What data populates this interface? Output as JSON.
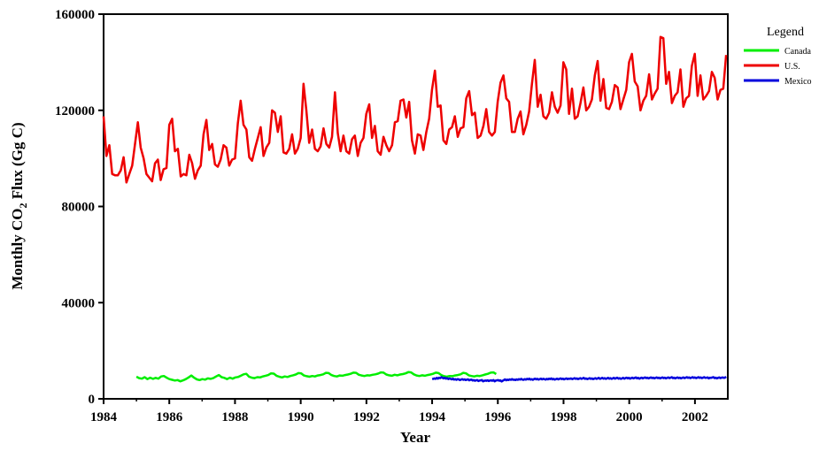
{
  "chart_data": {
    "type": "line",
    "xlabel": "Year",
    "ylabel": {
      "prefix": "Monthly CO",
      "subscript": "2",
      "suffix": " Flux (Gg C)"
    },
    "xlim": [
      1984,
      2003
    ],
    "ylim": [
      0,
      160000
    ],
    "x_ticks": [
      "1984",
      "1986",
      "1988",
      "1990",
      "1992",
      "1994",
      "1996",
      "1998",
      "2000",
      "2002"
    ],
    "y_ticks": [
      "0",
      "40000",
      "80000",
      "120000",
      "160000"
    ],
    "legend": {
      "title": "Legend",
      "position": "top-right"
    },
    "series": [
      {
        "name": "Canada",
        "color": "#00ee00",
        "x_start": 1985.0,
        "x_end": 1995.95,
        "values": [
          9200,
          8600,
          8400,
          9000,
          8200,
          8800,
          8300,
          8700,
          8400,
          9300,
          9500,
          8800,
          8200,
          7900,
          7600,
          7800,
          7300,
          7700,
          8200,
          8900,
          9700,
          8800,
          8100,
          7800,
          8200,
          8000,
          8500,
          8300,
          8600,
          9300,
          9900,
          9000,
          8700,
          8200,
          8800,
          8400,
          8900,
          9100,
          9600,
          10200,
          10400,
          9200,
          8800,
          8600,
          9000,
          8900,
          9300,
          9600,
          9900,
          10600,
          10500,
          9600,
          9200,
          8900,
          9300,
          9100,
          9500,
          9800,
          10100,
          10700,
          10600,
          9700,
          9400,
          9200,
          9500,
          9300,
          9700,
          9900,
          10200,
          10800,
          10700,
          9900,
          9500,
          9300,
          9700,
          9600,
          9900,
          10100,
          10400,
          10900,
          10800,
          10000,
          9700,
          9500,
          9800,
          9700,
          10000,
          10200,
          10500,
          11000,
          10900,
          10100,
          9800,
          9600,
          10000,
          9800,
          10100,
          10300,
          10600,
          11100,
          11000,
          10200,
          9700,
          9500,
          9800,
          9600,
          9900,
          10100,
          10400,
          10900,
          10700,
          9900,
          9400,
          9200,
          9500,
          9400,
          9700,
          9900,
          10200,
          10800,
          10600,
          9800,
          9500,
          9300,
          9600,
          9500,
          9800,
          10100,
          10400,
          10900,
          11000,
          10300
        ]
      },
      {
        "name": "U.S.",
        "color": "#ee0000",
        "x_start": 1984.0,
        "x_end": 2002.95,
        "values": [
          117500,
          101000,
          105500,
          93500,
          93000,
          93000,
          95000,
          100500,
          90000,
          93500,
          97000,
          106000,
          115000,
          104500,
          100000,
          93500,
          92000,
          90500,
          98000,
          99500,
          91000,
          95500,
          96000,
          114000,
          116500,
          103000,
          104000,
          92500,
          93500,
          93000,
          101500,
          98000,
          91500,
          95000,
          97000,
          110000,
          116000,
          103500,
          106000,
          97500,
          96500,
          99500,
          105500,
          104500,
          97000,
          99500,
          100000,
          114500,
          124000,
          114000,
          112000,
          100500,
          99000,
          104000,
          108500,
          113000,
          101000,
          104500,
          106500,
          120000,
          119000,
          111000,
          117500,
          102500,
          102000,
          104000,
          110000,
          102000,
          104000,
          108500,
          131000,
          120000,
          106500,
          112000,
          104000,
          103000,
          105000,
          112500,
          106000,
          104500,
          109000,
          127500,
          110500,
          103000,
          109500,
          103000,
          102000,
          108000,
          109500,
          101000,
          106500,
          108500,
          118500,
          122500,
          108500,
          113500,
          103000,
          101500,
          109000,
          105500,
          103000,
          105500,
          115000,
          115500,
          124000,
          124500,
          117000,
          123500,
          107500,
          102000,
          110000,
          109500,
          103500,
          111000,
          116500,
          128500,
          136500,
          121500,
          122000,
          107500,
          106000,
          112000,
          113000,
          117500,
          109000,
          112500,
          113000,
          125000,
          128000,
          118000,
          119000,
          108500,
          109500,
          113500,
          120500,
          111000,
          109500,
          111000,
          123500,
          131500,
          134500,
          125000,
          123500,
          111000,
          111000,
          116500,
          119500,
          110000,
          114000,
          119500,
          131000,
          141000,
          121500,
          126500,
          117500,
          116500,
          119000,
          127500,
          121500,
          119000,
          122000,
          140000,
          137000,
          118500,
          129000,
          116500,
          117500,
          123000,
          129500,
          120000,
          121500,
          124500,
          134500,
          140500,
          124000,
          133000,
          121000,
          120500,
          123500,
          130500,
          129500,
          120500,
          124500,
          128500,
          140000,
          143500,
          132000,
          130000,
          120000,
          124000,
          126000,
          135000,
          124500,
          127000,
          129000,
          150500,
          150000,
          131000,
          136000,
          123000,
          126000,
          127500,
          137000,
          121500,
          125000,
          126000,
          138500,
          143500,
          126000,
          134500,
          124500,
          126000,
          128000,
          136000,
          133500,
          124500,
          128500,
          129000,
          143000
        ]
      },
      {
        "name": "Mexico",
        "color": "#0000dd",
        "x_start": 1994.0,
        "x_end": 2002.95,
        "values": [
          8200,
          8300,
          8500,
          8300,
          8700,
          8400,
          8800,
          8600,
          9000,
          8700,
          8500,
          8800,
          8400,
          8600,
          8200,
          8500,
          8300,
          8100,
          8400,
          8000,
          8200,
          7900,
          8200,
          8100,
          7800,
          8000,
          8200,
          7900,
          8100,
          7800,
          8000,
          8100,
          7700,
          7900,
          8000,
          7600,
          7800,
          7500,
          7700,
          7800,
          7400,
          7600,
          7700,
          7800,
          7300,
          7500,
          7600,
          7500,
          7700,
          7400,
          7600,
          7700,
          7500,
          7800,
          7300,
          7600,
          7700,
          7800,
          7500,
          7700,
          7200,
          7500,
          7800,
          8100,
          7700,
          8000,
          7800,
          8100,
          7900,
          8200,
          7900,
          8000,
          7800,
          8100,
          7900,
          8200,
          8000,
          8300,
          8000,
          7900,
          8200,
          8000,
          8300,
          8100,
          8400,
          8000,
          8200,
          7900,
          8200,
          8400,
          8100,
          8300,
          8000,
          8200,
          8400,
          8100,
          8300,
          8200,
          8000,
          8300,
          8100,
          8400,
          8200,
          8500,
          8100,
          8300,
          8000,
          8200,
          8400,
          8100,
          8300,
          8500,
          8200,
          8400,
          8100,
          8300,
          8500,
          8200,
          8400,
          8300,
          8500,
          8200,
          8400,
          8600,
          8300,
          8500,
          8200,
          8400,
          8600,
          8300,
          8500,
          8700,
          8300,
          8500,
          8200,
          8400,
          8600,
          8300,
          8500,
          8200,
          8400,
          8600,
          8300,
          8500,
          8700,
          8300,
          8500,
          8700,
          8400,
          8600,
          8300,
          8500,
          8700,
          8400,
          8600,
          8300,
          8500,
          8700,
          8400,
          8600,
          8800,
          8400,
          8600,
          8300,
          8500,
          8700,
          8400,
          8600,
          8800,
          8500,
          8700,
          8400,
          8600,
          8800,
          8500,
          8700,
          8900,
          8500,
          8700,
          8400,
          8600,
          8800,
          8500,
          8700,
          8900,
          8600,
          8800,
          8500,
          8700,
          8900,
          8600,
          8800,
          8500,
          8700,
          8900,
          8600,
          8800,
          8500,
          8700,
          8900,
          8600,
          8800,
          8500,
          8700,
          8900,
          8600,
          8800,
          9000,
          8600,
          8800,
          8500,
          8700,
          8900,
          8600,
          8800,
          8500,
          8700,
          8900,
          8600,
          8800,
          9000,
          8700,
          8900,
          8600,
          8800,
          9000,
          8700,
          8900,
          8600,
          8800,
          9000,
          8700,
          8900,
          8600,
          8800,
          9000,
          8700,
          8800,
          8900,
          8500,
          8800,
          8700,
          8900,
          9000,
          8600,
          8800,
          8500,
          8700,
          8900,
          8600,
          8800,
          8900,
          8700,
          8800,
          9200
        ]
      }
    ]
  }
}
